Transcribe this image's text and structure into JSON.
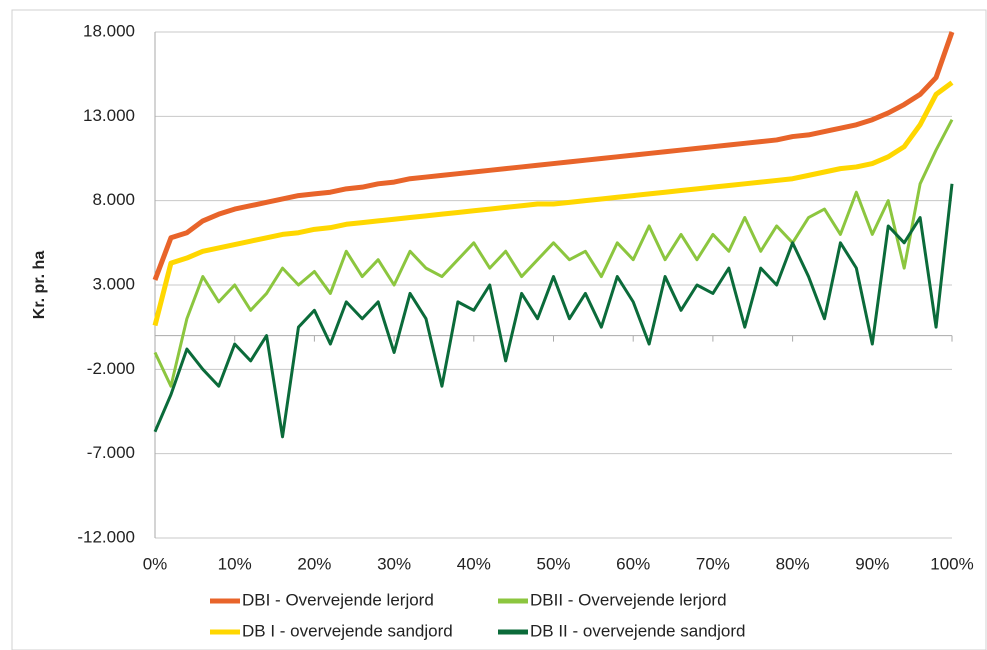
{
  "chart_data": {
    "type": "line",
    "y_label": "Kr. pr. ha",
    "x": [
      0,
      2,
      4,
      6,
      8,
      10,
      12,
      14,
      16,
      18,
      20,
      22,
      24,
      26,
      28,
      30,
      32,
      34,
      36,
      38,
      40,
      42,
      44,
      46,
      48,
      50,
      52,
      54,
      56,
      58,
      60,
      62,
      64,
      66,
      68,
      70,
      72,
      74,
      76,
      78,
      80,
      82,
      84,
      86,
      88,
      90,
      92,
      94,
      96,
      98,
      100
    ],
    "series": [
      {
        "name": "DBI - Overvejende lerjord",
        "color": "#e8642a",
        "width": 5,
        "values": [
          3300,
          5800,
          6100,
          6800,
          7200,
          7500,
          7700,
          7900,
          8100,
          8300,
          8400,
          8500,
          8700,
          8800,
          9000,
          9100,
          9300,
          9400,
          9500,
          9600,
          9700,
          9800,
          9900,
          10000,
          10100,
          10200,
          10300,
          10400,
          10500,
          10600,
          10700,
          10800,
          10900,
          11000,
          11100,
          11200,
          11300,
          11400,
          11500,
          11600,
          11800,
          11900,
          12100,
          12300,
          12500,
          12800,
          13200,
          13700,
          14300,
          15300,
          18000
        ]
      },
      {
        "name": "DBII - Overvejende lerjord",
        "color": "#8cc63f",
        "width": 3,
        "values": [
          -1000,
          -3000,
          1000,
          3500,
          2000,
          3000,
          1500,
          2500,
          4000,
          3000,
          3800,
          2500,
          5000,
          3500,
          4500,
          3000,
          5000,
          4000,
          3500,
          4500,
          5500,
          4000,
          5000,
          3500,
          4500,
          5500,
          4500,
          5000,
          3500,
          5500,
          4500,
          6500,
          4500,
          6000,
          4500,
          6000,
          5000,
          7000,
          5000,
          6500,
          5500,
          7000,
          7500,
          6000,
          8500,
          6000,
          8000,
          4000,
          9000,
          11000,
          12800
        ]
      },
      {
        "name": "DB I - overvejende sandjord",
        "color": "#ffd700",
        "width": 5,
        "values": [
          600,
          4300,
          4600,
          5000,
          5200,
          5400,
          5600,
          5800,
          6000,
          6100,
          6300,
          6400,
          6600,
          6700,
          6800,
          6900,
          7000,
          7100,
          7200,
          7300,
          7400,
          7500,
          7600,
          7700,
          7800,
          7800,
          7900,
          8000,
          8100,
          8200,
          8300,
          8400,
          8500,
          8600,
          8700,
          8800,
          8900,
          9000,
          9100,
          9200,
          9300,
          9500,
          9700,
          9900,
          10000,
          10200,
          10600,
          11200,
          12500,
          14300,
          15000
        ]
      },
      {
        "name": "DB II - overvejende sandjord",
        "color": "#0b6b3a",
        "width": 3,
        "values": [
          -5700,
          -3500,
          -800,
          -2000,
          -3000,
          -500,
          -1500,
          0,
          -6000,
          500,
          1500,
          -500,
          2000,
          1000,
          2000,
          -1000,
          2500,
          1000,
          -3000,
          2000,
          1500,
          3000,
          -1500,
          2500,
          1000,
          3500,
          1000,
          2500,
          500,
          3500,
          2000,
          -500,
          3500,
          1500,
          3000,
          2500,
          4000,
          500,
          4000,
          3000,
          5500,
          3500,
          1000,
          5500,
          4000,
          -500,
          6500,
          5500,
          7000,
          500,
          9000
        ]
      }
    ],
    "xlim": [
      0,
      100
    ],
    "xticks": [
      {
        "value": 0,
        "label": "0%"
      },
      {
        "value": 10,
        "label": "10%"
      },
      {
        "value": 20,
        "label": "20%"
      },
      {
        "value": 30,
        "label": "30%"
      },
      {
        "value": 40,
        "label": "40%"
      },
      {
        "value": 50,
        "label": "50%"
      },
      {
        "value": 60,
        "label": "60%"
      },
      {
        "value": 70,
        "label": "70%"
      },
      {
        "value": 80,
        "label": "80%"
      },
      {
        "value": 90,
        "label": "90%"
      },
      {
        "value": 100,
        "label": "100%"
      }
    ],
    "ylim": [
      -12000,
      18000
    ],
    "yticks": [
      {
        "value": -12000,
        "label": "-12.000"
      },
      {
        "value": -7000,
        "label": "-7.000"
      },
      {
        "value": -2000,
        "label": "-2.000"
      },
      {
        "value": 3000,
        "label": "3.000"
      },
      {
        "value": 8000,
        "label": "8.000"
      },
      {
        "value": 13000,
        "label": "13.000"
      },
      {
        "value": 18000,
        "label": "18.000"
      }
    ],
    "grid": true,
    "legend": "bottom"
  }
}
